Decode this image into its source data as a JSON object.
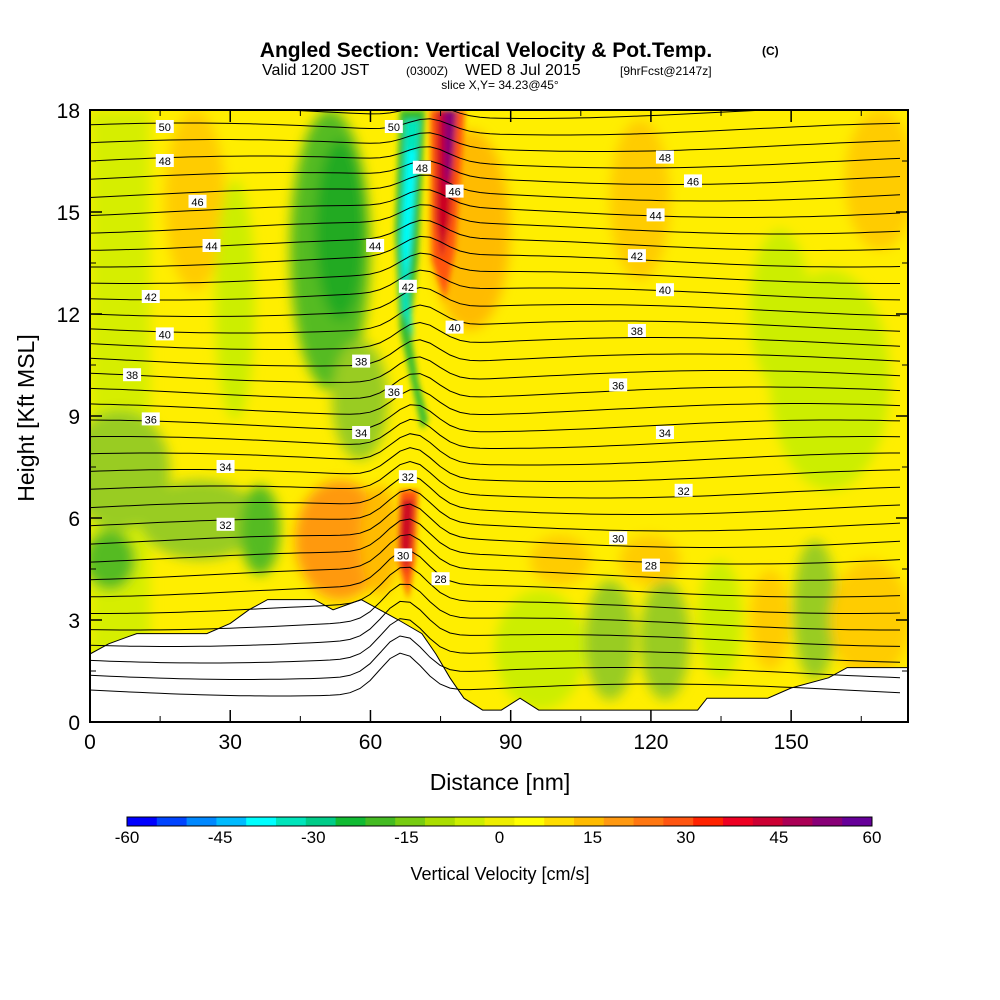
{
  "chart_data": {
    "type": "heatmap",
    "title": "Angled Section: Vertical Velocity & Pot.Temp.",
    "title_mark": "(C)",
    "subtitle": {
      "a": "Valid 1200 JST",
      "b": "(0300Z)",
      "c": "WED 8 Jul 2015",
      "d": "[9hrFcst@2147z]"
    },
    "slice": "slice X,Y= 34.23@45°",
    "xlabel": "Distance [nm]",
    "ylabel": "Height [Kft MSL]",
    "xlim": [
      0,
      175
    ],
    "ylim": [
      0,
      18
    ],
    "x_ticks": [
      "0",
      "30",
      "60",
      "90",
      "120",
      "150"
    ],
    "y_ticks": [
      "0",
      "3",
      "6",
      "9",
      "12",
      "15",
      "18"
    ],
    "colorbar": {
      "title": "Vertical Velocity [cm/s]",
      "labels": [
        "-60",
        "-45",
        "-30",
        "-15",
        "0",
        "15",
        "30",
        "45",
        "60"
      ],
      "colors": [
        "#0000ff",
        "#0044ff",
        "#0088ff",
        "#00bbff",
        "#00ffff",
        "#00e5bb",
        "#00cc88",
        "#11bb33",
        "#44bb22",
        "#77cc11",
        "#aadd00",
        "#ccee00",
        "#eeee00",
        "#ffff00",
        "#ffdd00",
        "#ffbb00",
        "#ff9911",
        "#ff7711",
        "#ff5511",
        "#ff2200",
        "#ee0022",
        "#cc0033",
        "#aa0055",
        "#880077",
        "#660099"
      ]
    },
    "terrain": [
      [
        0,
        2
      ],
      [
        4,
        2.3
      ],
      [
        10,
        2.6
      ],
      [
        25,
        2.6
      ],
      [
        30,
        2.9
      ],
      [
        34,
        3.3
      ],
      [
        38,
        3.6
      ],
      [
        48,
        3.6
      ],
      [
        52,
        3.3
      ],
      [
        58,
        3.6
      ],
      [
        62,
        3.3
      ],
      [
        66,
        3.0
      ],
      [
        71,
        2.6
      ],
      [
        74,
        2.0
      ],
      [
        77,
        1.3
      ],
      [
        80,
        0.7
      ],
      [
        84,
        0.35
      ],
      [
        88,
        0.35
      ],
      [
        92,
        0.7
      ],
      [
        96,
        0.35
      ],
      [
        130,
        0.35
      ],
      [
        132,
        0.7
      ],
      [
        145,
        0.7
      ],
      [
        150,
        1.0
      ],
      [
        158,
        1.3
      ],
      [
        162,
        1.6
      ],
      [
        170,
        1.6
      ],
      [
        175,
        1.6
      ]
    ],
    "contour_labels": [
      {
        "v": "50",
        "x": 16,
        "y": 17.5
      },
      {
        "v": "48",
        "x": 16,
        "y": 16.5
      },
      {
        "v": "46",
        "x": 23,
        "y": 15.3
      },
      {
        "v": "44",
        "x": 26,
        "y": 14.0
      },
      {
        "v": "42",
        "x": 13,
        "y": 12.5
      },
      {
        "v": "40",
        "x": 16,
        "y": 11.4
      },
      {
        "v": "38",
        "x": 9,
        "y": 10.2
      },
      {
        "v": "36",
        "x": 13,
        "y": 8.9
      },
      {
        "v": "34",
        "x": 29,
        "y": 7.5
      },
      {
        "v": "32",
        "x": 29,
        "y": 5.8
      },
      {
        "v": "50",
        "x": 65,
        "y": 17.5
      },
      {
        "v": "48",
        "x": 71,
        "y": 16.3
      },
      {
        "v": "46",
        "x": 78,
        "y": 15.6
      },
      {
        "v": "44",
        "x": 61,
        "y": 14.0
      },
      {
        "v": "42",
        "x": 68,
        "y": 12.8
      },
      {
        "v": "40",
        "x": 78,
        "y": 11.6
      },
      {
        "v": "38",
        "x": 58,
        "y": 10.6
      },
      {
        "v": "36",
        "x": 65,
        "y": 9.7
      },
      {
        "v": "34",
        "x": 58,
        "y": 8.5
      },
      {
        "v": "32",
        "x": 68,
        "y": 7.2
      },
      {
        "v": "30",
        "x": 67,
        "y": 4.9
      },
      {
        "v": "28",
        "x": 75,
        "y": 4.2
      },
      {
        "v": "48",
        "x": 123,
        "y": 16.6
      },
      {
        "v": "46",
        "x": 129,
        "y": 15.9
      },
      {
        "v": "44",
        "x": 121,
        "y": 14.9
      },
      {
        "v": "42",
        "x": 117,
        "y": 13.7
      },
      {
        "v": "40",
        "x": 123,
        "y": 12.7
      },
      {
        "v": "38",
        "x": 117,
        "y": 11.5
      },
      {
        "v": "36",
        "x": 113,
        "y": 9.9
      },
      {
        "v": "34",
        "x": 123,
        "y": 8.5
      },
      {
        "v": "32",
        "x": 127,
        "y": 6.8
      },
      {
        "v": "30",
        "x": 113,
        "y": 5.4
      },
      {
        "v": "28",
        "x": 120,
        "y": 4.6
      }
    ]
  }
}
